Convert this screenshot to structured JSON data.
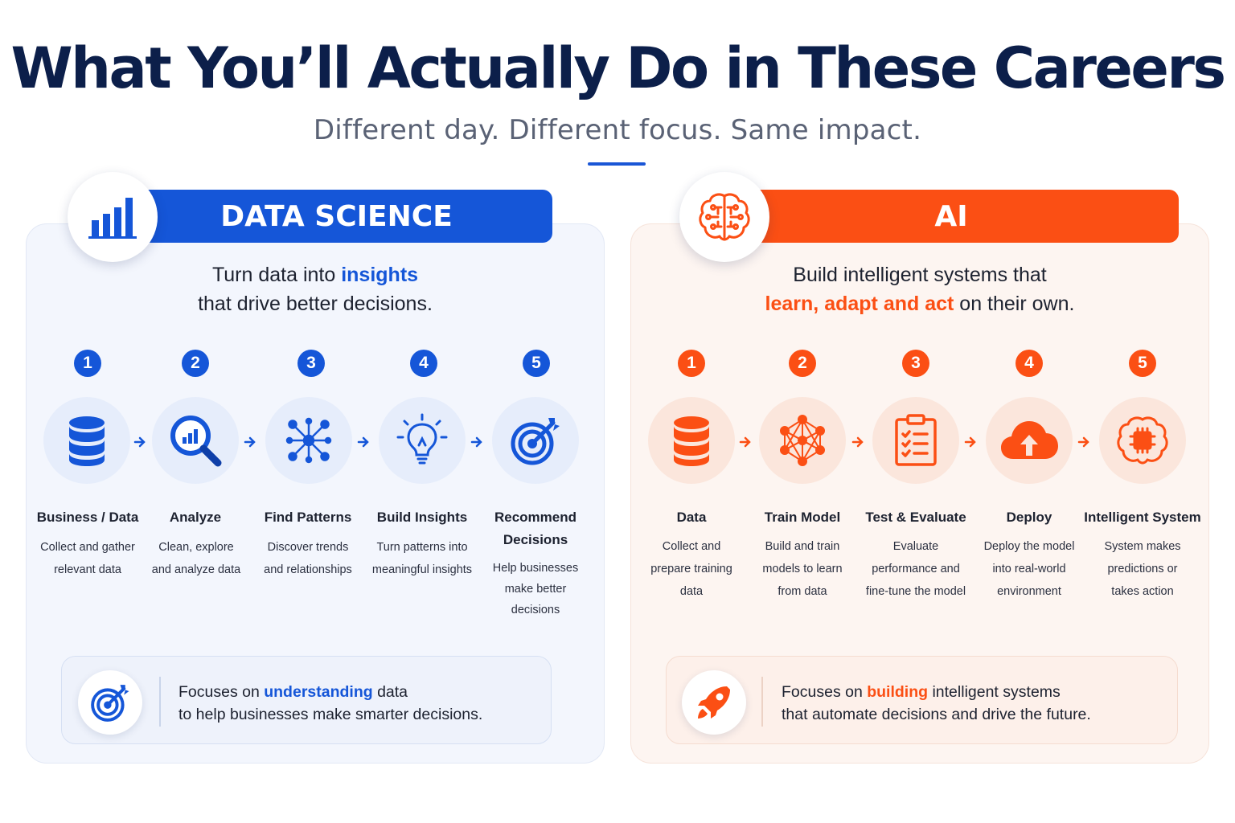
{
  "header": {
    "title": "What You’ll Actually Do in These Careers",
    "subtitle": "Different day. Different focus. Same impact."
  },
  "colors": {
    "blue": "#1556d8",
    "orange": "#fb4f14",
    "navy": "#0c1f4a"
  },
  "data_science": {
    "banner": "DATA SCIENCE",
    "badge_icon": "bar-chart-icon",
    "tagline": {
      "line1_pre": "Turn data into ",
      "line1_hl": "insights",
      "line2": "that drive better decisions."
    },
    "steps": [
      {
        "num": "1",
        "icon": "database-icon",
        "title": "Business / Data",
        "desc": [
          "Collect and gather",
          "relevant data"
        ]
      },
      {
        "num": "2",
        "icon": "magnifier-chart-icon",
        "title": "Analyze",
        "desc": [
          "Clean, explore",
          "and analyze data"
        ]
      },
      {
        "num": "3",
        "icon": "pattern-network-icon",
        "title": "Find Patterns",
        "desc": [
          "Discover trends",
          "and relationships"
        ]
      },
      {
        "num": "4",
        "icon": "lightbulb-icon",
        "title": "Build Insights",
        "desc": [
          "Turn patterns into",
          "meaningful insights"
        ]
      },
      {
        "num": "5",
        "icon": "target-icon",
        "title": "Recommend Decisions",
        "desc": [
          "Help businesses",
          "make better",
          "decisions"
        ]
      }
    ],
    "focus": {
      "icon": "target-icon",
      "pre": "Focuses on ",
      "hl": "understanding",
      "post": " data",
      "line2": "to help businesses make smarter decisions."
    }
  },
  "ai": {
    "banner": "AI",
    "badge_icon": "brain-icon",
    "tagline": {
      "line1": "Build intelligent systems that",
      "line2_hl": "learn, adapt and act",
      "line2_post": " on their own."
    },
    "steps": [
      {
        "num": "1",
        "icon": "database-icon",
        "title": "Data",
        "desc": [
          "Collect and",
          "prepare training",
          "data"
        ]
      },
      {
        "num": "2",
        "icon": "neural-network-icon",
        "title": "Train Model",
        "desc": [
          "Build and train",
          "models to learn",
          "from data"
        ]
      },
      {
        "num": "3",
        "icon": "clipboard-checklist-icon",
        "title": "Test & Evaluate",
        "desc": [
          "Evaluate",
          "performance and",
          "fine-tune the model"
        ]
      },
      {
        "num": "4",
        "icon": "cloud-upload-icon",
        "title": "Deploy",
        "desc": [
          "Deploy the model",
          "into real-world",
          "environment"
        ]
      },
      {
        "num": "5",
        "icon": "brain-chip-icon",
        "title": "Intelligent System",
        "desc": [
          "System makes",
          "predictions or",
          "takes action"
        ]
      }
    ],
    "focus": {
      "icon": "rocket-icon",
      "pre": "Focuses on ",
      "hl": "building",
      "post": " intelligent systems",
      "line2": "that automate decisions and drive the future."
    }
  }
}
